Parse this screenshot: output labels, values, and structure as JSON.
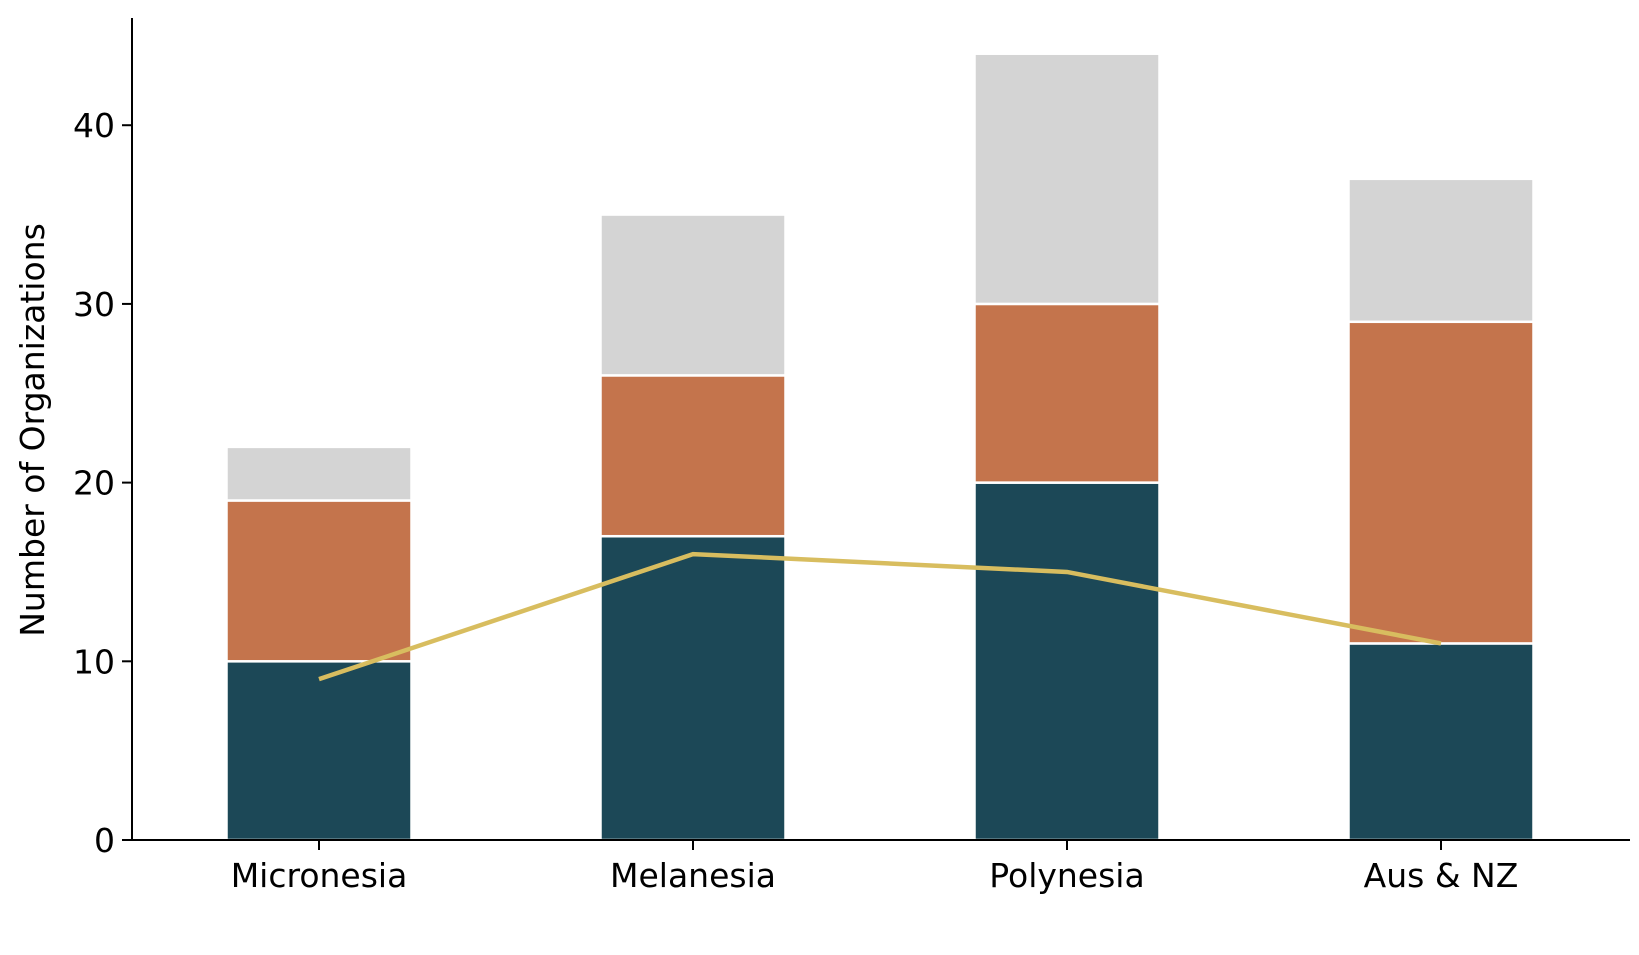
{
  "chart_data": {
    "type": "bar",
    "stacked": true,
    "categories": [
      "Micronesia",
      "Melanesia",
      "Polynesia",
      "Aus & NZ"
    ],
    "series": [
      {
        "values": [
          10,
          17,
          20,
          11
        ],
        "color": "#1c4857"
      },
      {
        "values": [
          9,
          9,
          10,
          18
        ],
        "color": "#c4744c"
      },
      {
        "values": [
          3,
          9,
          14,
          8
        ],
        "color": "#d4d4d4"
      }
    ],
    "line": {
      "values": [
        9,
        16,
        15,
        11
      ],
      "color": "#d8bd5f"
    },
    "title": "",
    "xlabel": "",
    "ylabel": "Number of Organizations",
    "ylim": [
      0,
      46
    ],
    "yticks": [
      0,
      10,
      20,
      30,
      40
    ],
    "grid": false,
    "legend": "none"
  }
}
